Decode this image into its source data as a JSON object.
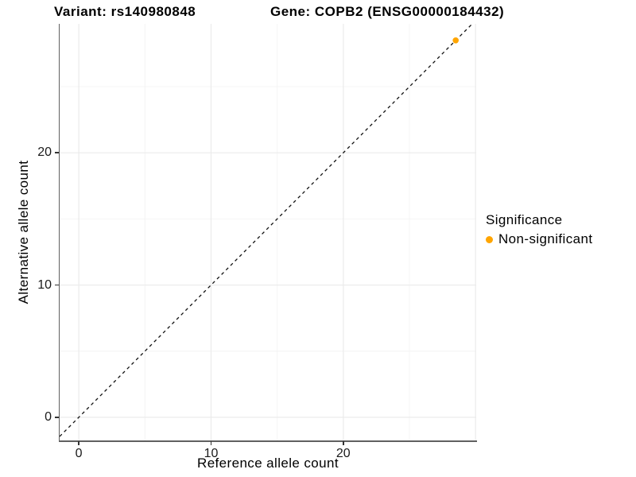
{
  "chart_data": {
    "type": "scatter",
    "title_left": "Variant: rs140980848",
    "title_right": "Gene: COPB2 (ENSG00000184432)",
    "xlabel": "Reference allele count",
    "ylabel": "Alternative allele count",
    "xlim": [
      -1.45,
      30.05
    ],
    "ylim": [
      -1.75,
      29.75
    ],
    "x_major_ticks": [
      0,
      10,
      20
    ],
    "y_major_ticks": [
      0,
      10,
      20
    ],
    "x_grid_major": [
      0,
      10,
      20,
      30
    ],
    "x_grid_minor": [
      5,
      15,
      25
    ],
    "y_grid_major": [
      0,
      10,
      20,
      30
    ],
    "y_grid_minor": [
      5,
      15,
      25
    ],
    "identity_line": {
      "style": "dashed",
      "color": "#111111",
      "equation": "y = x"
    },
    "series": [
      {
        "name": "Non-significant",
        "color": "#FFA500",
        "points": [
          {
            "x": 28.5,
            "y": 28.5
          }
        ]
      }
    ],
    "legend": {
      "title": "Significance",
      "position": "right",
      "items": [
        {
          "label": "Non-significant",
          "color": "#FFA500"
        }
      ]
    },
    "grid": {
      "major_color": "#EBEBEB",
      "minor_color": "#F4F4F4",
      "background": "#FFFFFF"
    },
    "colors": {
      "axis_line": "#606060",
      "tick_mark": "#333333",
      "tick_text": "#1A1A1A",
      "title_text": "#000000"
    }
  }
}
